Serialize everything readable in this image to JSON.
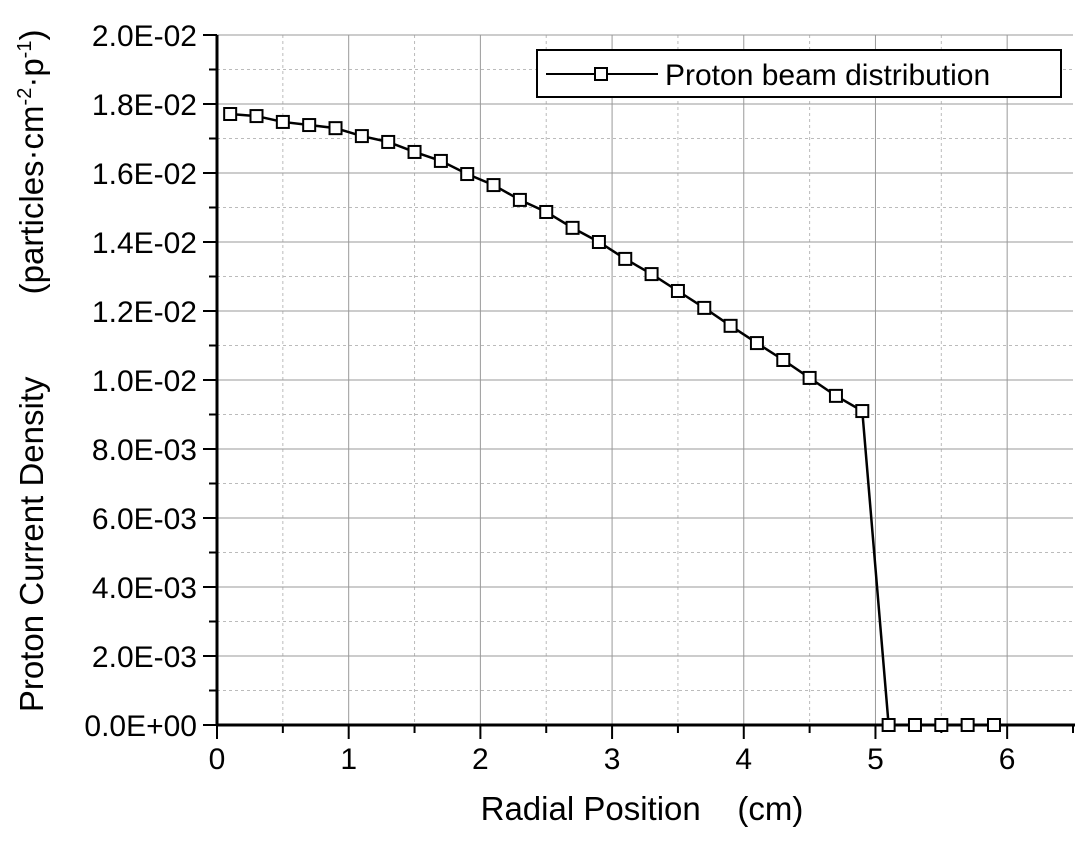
{
  "chart_data": {
    "type": "line",
    "title": "",
    "xlabel": "Radial Position    (cm)",
    "ylabel_main": "Proton Current Density",
    "ylabel_units": "(particles·cm",
    "ylabel_sup1": "-2",
    "ylabel_mid": "·p",
    "ylabel_sup2": "-1",
    "ylabel_end": ")",
    "xlim": [
      0,
      6.5
    ],
    "ylim": [
      0,
      0.02
    ],
    "x_ticks": [
      0,
      1,
      2,
      3,
      4,
      5,
      6
    ],
    "x_tick_labels": [
      "0",
      "1",
      "2",
      "3",
      "4",
      "5",
      "6"
    ],
    "y_ticks": [
      0,
      0.002,
      0.004,
      0.006,
      0.008,
      0.01,
      0.012,
      0.014,
      0.016,
      0.018,
      0.02
    ],
    "y_tick_labels": [
      "0.0E+00",
      "2.0E-03",
      "4.0E-03",
      "6.0E-03",
      "8.0E-03",
      "1.0E-02",
      "1.2E-02",
      "1.4E-02",
      "1.6E-02",
      "1.8E-02",
      "2.0E-02"
    ],
    "grid": true,
    "legend_position": "top-right",
    "series": [
      {
        "name": "Proton beam distribution",
        "marker": "open-square",
        "color": "#000000",
        "x": [
          0.1,
          0.3,
          0.5,
          0.7,
          0.9,
          1.1,
          1.3,
          1.5,
          1.7,
          1.9,
          2.1,
          2.3,
          2.5,
          2.7,
          2.9,
          3.1,
          3.3,
          3.5,
          3.7,
          3.9,
          4.1,
          4.3,
          4.5,
          4.7,
          4.9,
          5.1,
          5.3,
          5.5,
          5.7,
          5.9
        ],
        "y": [
          0.01771,
          0.01765,
          0.01748,
          0.01739,
          0.0173,
          0.01707,
          0.0169,
          0.01661,
          0.01635,
          0.01597,
          0.01565,
          0.01522,
          0.01487,
          0.01441,
          0.014,
          0.01351,
          0.01307,
          0.01258,
          0.01209,
          0.01157,
          0.01107,
          0.01058,
          0.01006,
          0.00954,
          0.0091,
          0,
          0,
          0,
          0,
          0
        ]
      }
    ]
  }
}
